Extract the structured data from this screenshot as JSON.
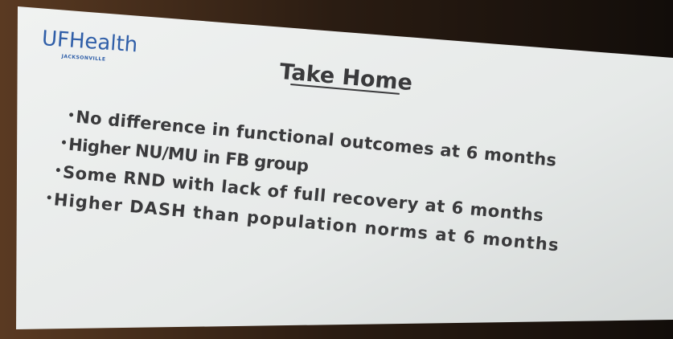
{
  "logo": {
    "name": "UFHealth",
    "location": "JACKSONVILLE"
  },
  "slide": {
    "title": "Take Home",
    "bullets": [
      "No difference in functional outcomes at 6 months",
      "Higher NU/MU in FB group",
      "Some RND with lack of full recovery at 6 months",
      "Higher DASH than population norms at 6 months"
    ]
  }
}
